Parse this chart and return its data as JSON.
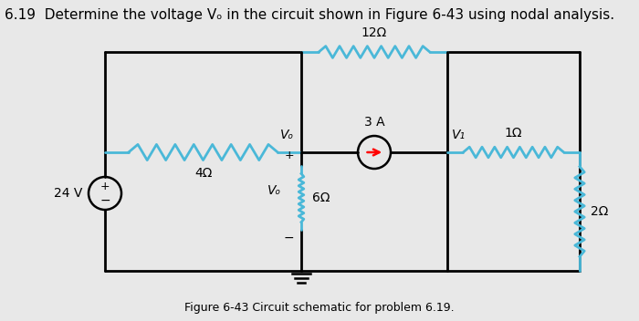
{
  "title": "6.19  Determine the voltage Vₒ in the circuit shown in Figure 6-43 using nodal analysis.",
  "caption": "Figure 6-43 Circuit schematic for problem 6.19.",
  "bg_color": "#e8e8e8",
  "line_color": "#000000",
  "resistor_color": "#4ab8d8",
  "title_fontsize": 11,
  "caption_fontsize": 9,
  "resistor_12ohm_label": "12Ω",
  "resistor_4ohm_label": "4Ω",
  "resistor_6ohm_label": "6Ω",
  "resistor_1ohm_label": "1Ω",
  "resistor_2ohm_label": "2Ω",
  "current_source_label": "3 A",
  "voltage_source_label": "24 V"
}
